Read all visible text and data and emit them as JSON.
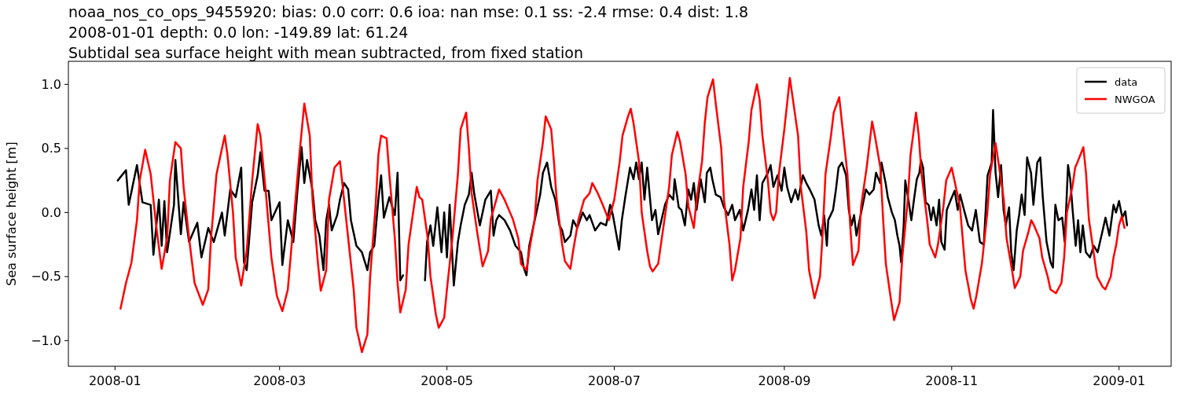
{
  "chart_data": {
    "type": "line",
    "title": "noaa_nos_co_ops_9455920: bias: 0.0  corr: 0.6  ioa: nan  mse: 0.1  ss: -2.4  rmse: 0.4  dist: 1.8",
    "subtitle": "2008-01-01 depth: 0.0 lon: -149.89 lat: 61.24\nSubtidal sea surface height with mean subtracted, from fixed station",
    "ylabel": "Sea surface height [m]",
    "xlim": [
      "2007-12-15",
      "2009-01-20"
    ],
    "ylim": [
      -1.2,
      1.18
    ],
    "xticks": [
      {
        "value": "2008-01-01",
        "label": "2008-01"
      },
      {
        "value": "2008-03-01",
        "label": "2008-03"
      },
      {
        "value": "2008-05-01",
        "label": "2008-05"
      },
      {
        "value": "2008-07-01",
        "label": "2008-07"
      },
      {
        "value": "2008-09-01",
        "label": "2008-09"
      },
      {
        "value": "2008-11-01",
        "label": "2008-11"
      },
      {
        "value": "2009-01-01",
        "label": "2009-01"
      }
    ],
    "yticks": [
      {
        "value": -1,
        "label": "−1.0"
      },
      {
        "value": -0.5,
        "label": "−0.5"
      },
      {
        "value": 0,
        "label": "0.0"
      },
      {
        "value": 0.5,
        "label": "0.5"
      },
      {
        "value": 1,
        "label": "1.0"
      }
    ],
    "grid": false,
    "legend": "top right",
    "marker": "none",
    "line_style": "solid",
    "series": [
      {
        "name": "data",
        "color": "#000000",
        "x": [
          "2008-01-02",
          "2008-01-05",
          "2008-01-06",
          "2008-01-09",
          "2008-01-11",
          "2008-01-14",
          "2008-01-15",
          "2008-01-17",
          "2008-01-18",
          "2008-01-19",
          "2008-01-20",
          "2008-01-22T12:00",
          "2008-01-23",
          "2008-01-25",
          "2008-01-26",
          "2008-01-28",
          "2008-01-31",
          "2008-02-01T12:00",
          "2008-02-04",
          "2008-02-06",
          "2008-02-09",
          "2008-02-10",
          "2008-02-12",
          "2008-02-14",
          "2008-02-16",
          "2008-02-17",
          "2008-02-18",
          "2008-02-20",
          "2008-02-22",
          "2008-02-23",
          "2008-02-24T12:00",
          "2008-02-26",
          "2008-02-27",
          "2008-03-01",
          "2008-03-02",
          "2008-03-04",
          "2008-03-06",
          "2008-03-07T12:00",
          "2008-03-09",
          "2008-03-10",
          "2008-03-11",
          "2008-03-13",
          "2008-03-14",
          "2008-03-15T12:00",
          "2008-03-17",
          "2008-03-18",
          "2008-03-19",
          "2008-03-20",
          "2008-03-22",
          "2008-03-23",
          "2008-03-24T12:00",
          "2008-03-26",
          "2008-03-27",
          "2008-03-29",
          "2008-03-31",
          "2008-04-02",
          "2008-04-03",
          "2008-04-04T12:00",
          "2008-04-06",
          "2008-04-07",
          "2008-04-08",
          "2008-04-10",
          "2008-04-12",
          "2008-04-13",
          "2008-04-14",
          "2008-04-15",
          "2008-04-20",
          "2008-04-23",
          "2008-04-23T18:00",
          "2008-04-25",
          "2008-04-26",
          "2008-04-27T12:00",
          "2008-04-29",
          "2008-04-30",
          "2008-05-01",
          "2008-05-02",
          "2008-05-03T12:00",
          "2008-05-05",
          "2008-05-06",
          "2008-05-07T12:00",
          "2008-05-09",
          "2008-05-10",
          "2008-05-11",
          "2008-05-12",
          "2008-05-13",
          "2008-05-15",
          "2008-05-17",
          "2008-05-18",
          "2008-05-19",
          "2008-05-20",
          "2008-05-22",
          "2008-05-24",
          "2008-05-26",
          "2008-05-28",
          "2008-05-29",
          "2008-05-30",
          "2008-05-31",
          "2008-06-02",
          "2008-06-04",
          "2008-06-05",
          "2008-06-06T12:00",
          "2008-06-08",
          "2008-06-09T12:00",
          "2008-06-11",
          "2008-06-12",
          "2008-06-13",
          "2008-06-15",
          "2008-06-16",
          "2008-06-17T12:00",
          "2008-06-19T12:00",
          "2008-06-21",
          "2008-06-22",
          "2008-06-24",
          "2008-06-26",
          "2008-06-28",
          "2008-06-29T12:00",
          "2008-06-30T12:00",
          "2008-07-02T18:00",
          "2008-07-03T18:00",
          "2008-07-05",
          "2008-07-06T18:00",
          "2008-07-08",
          "2008-07-09",
          "2008-07-10",
          "2008-07-11",
          "2008-07-12",
          "2008-07-13",
          "2008-07-14T18:00",
          "2008-07-16",
          "2008-07-17",
          "2008-07-19T12:00",
          "2008-07-21",
          "2008-07-22T12:00",
          "2008-07-23",
          "2008-07-24T12:00",
          "2008-07-25T12:00",
          "2008-07-26T18:00",
          "2008-07-28",
          "2008-07-29",
          "2008-07-30",
          "2008-07-31",
          "2008-08-01T12:00",
          "2008-08-03",
          "2008-08-03T18:00",
          "2008-08-05",
          "2008-08-05T18:00",
          "2008-08-07",
          "2008-08-08T18:00",
          "2008-08-10",
          "2008-08-11T12:00",
          "2008-08-13",
          "2008-08-14",
          "2008-08-15T18:00",
          "2008-08-17",
          "2008-08-18T18:00",
          "2008-08-20",
          "2008-08-21",
          "2008-08-22",
          "2008-08-23",
          "2008-08-24",
          "2008-08-26",
          "2008-08-27",
          "2008-08-28",
          "2008-08-29T12:00",
          "2008-08-31",
          "2008-09-01",
          "2008-09-02",
          "2008-09-03T12:00",
          "2008-09-05",
          "2008-09-06",
          "2008-09-07T18:00",
          "2008-09-09",
          "2008-09-10T12:00",
          "2008-09-12",
          "2008-09-13T12:00",
          "2008-09-14T12:00",
          "2008-09-15T12:00",
          "2008-09-16T12:00",
          "2008-09-17",
          "2008-09-18T18:00",
          "2008-09-19T18:00",
          "2008-09-20T18:00",
          "2008-09-22",
          "2008-09-23T12:00",
          "2008-09-24T12:00",
          "2008-09-25T12:00",
          "2008-09-26T10:00",
          "2008-09-27T07:00",
          "2008-09-28T10:00",
          "2008-09-29T14:00",
          "2008-09-30T17:00",
          "2008-10-02",
          "2008-10-03T14:00",
          "2008-10-04T10:00",
          "2008-10-05T22:00",
          "2008-10-06T10:00",
          "2008-10-07T22:00",
          "2008-10-08T17:00",
          "2008-10-10T05:00",
          "2008-10-11T07:00",
          "2008-10-12T05:00",
          "2008-10-13",
          "2008-10-13T14:00",
          "2008-10-14T12:00",
          "2008-10-15T02:00",
          "2008-10-16T12:00",
          "2008-10-17T07:00",
          "2008-10-18T12:00",
          "2008-10-19T07:00",
          "2008-10-20T05:00",
          "2008-10-20T19:00",
          "2008-10-21T14:00",
          "2008-10-22T12:00",
          "2008-10-23T14:00",
          "2008-10-24T12:00",
          "2008-10-25T07:00",
          "2008-10-26T12:00",
          "2008-10-27T10:00",
          "2008-10-28T05:00",
          "2008-10-29T10:00",
          "2008-10-30T05:00",
          "2008-10-31T17:00",
          "2008-11-02T02:00",
          "2008-11-03T05:00",
          "2008-11-04T02:00",
          "2008-11-05T12:00",
          "2008-11-07",
          "2008-11-08T10:00",
          "2008-11-09T19:00",
          "2008-11-11T07:00",
          "2008-11-12T17:00",
          "2008-11-14T02:00",
          "2008-11-15T14:00",
          "2008-11-16T02:00",
          "2008-11-17",
          "2008-11-17T22:00",
          "2008-11-19",
          "2008-11-19T22:00",
          "2008-11-20T17:00",
          "2008-11-21T22:00",
          "2008-11-22T17:00",
          "2008-11-23T14:00",
          "2008-11-24T17:00",
          "2008-11-25T14:00",
          "2008-11-26T12:00",
          "2008-11-27T14:00",
          "2008-11-28T12:00",
          "2008-11-29T22:00",
          "2008-11-30T19:00",
          "2008-12-02T05:00",
          "2008-12-03T07:00",
          "2008-12-04T05:00",
          "2008-12-05T14:00",
          "2008-12-07T02:00",
          "2008-12-07T22:00",
          "2008-12-08T19:00",
          "2008-12-09T22:00",
          "2008-12-11T07:00",
          "2008-12-12T05:00",
          "2008-12-13T10:00",
          "2008-12-14T05:00",
          "2008-12-15T02:00",
          "2008-12-16T05:00",
          "2008-12-17T02:00",
          "2008-12-17T22:00",
          "2008-12-18T19:00",
          "2008-12-19T22:00",
          "2008-12-21T10:00",
          "2008-12-22T19:00",
          "2008-12-24T05:00",
          "2008-12-25T17:00",
          "2008-12-27T02:00",
          "2008-12-28T12:00",
          "2008-12-30",
          "2008-12-30T22:00",
          "2009-01-01",
          "2009-01-02T05:00",
          "2009-01-03T07:00",
          "2009-01-03T22:00"
        ],
        "values": [
          0.25,
          0.33,
          0.06,
          0.37,
          0.08,
          0.06,
          -0.33,
          0.1,
          -0.26,
          0.09,
          -0.31,
          0.06,
          0.41,
          -0.17,
          0.08,
          -0.23,
          -0.08,
          -0.35,
          -0.12,
          -0.23,
          0.0,
          -0.18,
          0.18,
          0.12,
          0.35,
          -0.39,
          -0.45,
          0.08,
          0.29,
          0.47,
          0.17,
          0.17,
          -0.06,
          0.08,
          -0.41,
          -0.06,
          -0.23,
          0.17,
          0.51,
          0.23,
          0.41,
          0.17,
          -0.06,
          -0.18,
          -0.45,
          -0.06,
          0.06,
          -0.14,
          -0.02,
          0.1,
          0.23,
          0.18,
          -0.06,
          -0.26,
          -0.31,
          -0.45,
          -0.31,
          -0.26,
          0.1,
          0.29,
          -0.04,
          0.12,
          -0.02,
          0.31,
          -0.53,
          -0.49,
          null,
          -0.53,
          -0.23,
          -0.1,
          -0.26,
          0.04,
          -0.31,
          0.0,
          -0.35,
          0.06,
          -0.57,
          -0.23,
          -0.1,
          0.06,
          0.14,
          0.31,
          0.14,
          0.02,
          -0.1,
          0.1,
          0.17,
          -0.18,
          -0.06,
          -0.02,
          -0.06,
          -0.14,
          -0.26,
          -0.31,
          -0.43,
          -0.49,
          -0.26,
          -0.06,
          0.14,
          0.31,
          0.39,
          0.2,
          0.1,
          -0.1,
          -0.14,
          -0.23,
          -0.18,
          -0.06,
          -0.12,
          0.0,
          -0.06,
          -0.02,
          -0.14,
          -0.08,
          -0.1,
          0.06,
          -0.02,
          -0.29,
          -0.06,
          0.12,
          0.35,
          0.26,
          0.39,
          0.26,
          0.39,
          0.1,
          0.35,
          -0.06,
          0.02,
          -0.17,
          0.06,
          0.14,
          0.1,
          0.26,
          0.04,
          0.02,
          -0.1,
          0.18,
          0.1,
          0.23,
          0.02,
          0.26,
          0.08,
          0.31,
          0.35,
          0.26,
          0.14,
          0.12,
          0.04,
          -0.02,
          0.06,
          -0.06,
          0.02,
          -0.14,
          0.02,
          0.18,
          0.02,
          0.29,
          -0.06,
          0.23,
          0.31,
          0.37,
          0.2,
          0.29,
          0.17,
          0.35,
          0.2,
          0.08,
          0.18,
          0.1,
          0.29,
          0.23,
          0.17,
          0.1,
          -0.1,
          -0.18,
          -0.02,
          -0.26,
          -0.06,
          0.02,
          0.17,
          0.35,
          0.39,
          0.29,
          0.02,
          -0.1,
          -0.02,
          -0.18,
          -0.06,
          0.06,
          0.18,
          0.14,
          0.18,
          0.31,
          0.23,
          0.39,
          0.23,
          0.12,
          0.0,
          -0.06,
          -0.18,
          -0.26,
          -0.39,
          -0.1,
          0.25,
          0.06,
          -0.06,
          0.14,
          0.26,
          0.31,
          0.41,
          0.35,
          0.08,
          0.06,
          -0.06,
          0.04,
          -0.1,
          0.1,
          -0.23,
          -0.29,
          0.02,
          0.1,
          0.17,
          0.02,
          0.14,
          0.02,
          -0.1,
          -0.14,
          0.02,
          -0.23,
          -0.25,
          0.29,
          0.39,
          0.8,
          0.31,
          0.12,
          0.37,
          0.02,
          -0.1,
          0.04,
          -0.31,
          -0.45,
          -0.14,
          -0.02,
          0.14,
          -0.02,
          0.43,
          0.31,
          0.06,
          0.39,
          0.43,
          0.12,
          -0.23,
          -0.39,
          -0.43,
          0.06,
          -0.06,
          -0.04,
          -0.23,
          0.37,
          0.26,
          0.02,
          -0.26,
          -0.06,
          -0.31,
          -0.1,
          -0.31,
          -0.35,
          -0.26,
          -0.31,
          -0.17,
          -0.04,
          -0.18,
          0.06,
          0.0,
          0.09,
          -0.04,
          0.01,
          -0.1
        ]
      },
      {
        "name": "NWGOA",
        "color": "#ff0000",
        "x": [
          "2008-01-03",
          "2008-01-05",
          "2008-01-07",
          "2008-01-09",
          "2008-01-10",
          "2008-01-12",
          "2008-01-14",
          "2008-01-16",
          "2008-01-18",
          "2008-01-20",
          "2008-01-21",
          "2008-01-23",
          "2008-01-25",
          "2008-01-26",
          "2008-01-28",
          "2008-01-30",
          "2008-02-02",
          "2008-02-04",
          "2008-02-05",
          "2008-02-07",
          "2008-02-10",
          "2008-02-11",
          "2008-02-13",
          "2008-02-14",
          "2008-02-16",
          "2008-02-18",
          "2008-02-20",
          "2008-02-22",
          "2008-02-23",
          "2008-02-25",
          "2008-02-27",
          "2008-02-29",
          "2008-03-02",
          "2008-03-04",
          "2008-03-06",
          "2008-03-08",
          "2008-03-10",
          "2008-03-12",
          "2008-03-13",
          "2008-03-15",
          "2008-03-16",
          "2008-03-18",
          "2008-03-19",
          "2008-03-21",
          "2008-03-23",
          "2008-03-24",
          "2008-03-26",
          "2008-03-28",
          "2008-03-29",
          "2008-03-31",
          "2008-04-02",
          "2008-04-03",
          "2008-04-05",
          "2008-04-06",
          "2008-04-07",
          "2008-04-09",
          "2008-04-10",
          "2008-04-12",
          "2008-04-13",
          "2008-04-14",
          "2008-04-16",
          "2008-04-17",
          "2008-04-19",
          "2008-04-20",
          "2008-04-21",
          "2008-04-22",
          "2008-04-24",
          "2008-04-25",
          "2008-04-27",
          "2008-04-28",
          "2008-04-30",
          "2008-05-01",
          "2008-05-03",
          "2008-05-05",
          "2008-05-06",
          "2008-05-08",
          "2008-05-09",
          "2008-05-10",
          "2008-05-12",
          "2008-05-14",
          "2008-05-16",
          "2008-05-17",
          "2008-05-19",
          "2008-05-20",
          "2008-05-22",
          "2008-05-24",
          "2008-05-25",
          "2008-05-27",
          "2008-05-28",
          "2008-05-30",
          "2008-05-31",
          "2008-06-02",
          "2008-06-03",
          "2008-06-05",
          "2008-06-06",
          "2008-06-08",
          "2008-06-09",
          "2008-06-10",
          "2008-06-12",
          "2008-06-13",
          "2008-06-15",
          "2008-06-16",
          "2008-06-18",
          "2008-06-20",
          "2008-06-22",
          "2008-06-23",
          "2008-06-25",
          "2008-06-27",
          "2008-06-29",
          "2008-07-01",
          "2008-07-03",
          "2008-07-04",
          "2008-07-06",
          "2008-07-07",
          "2008-07-08",
          "2008-07-10",
          "2008-07-11",
          "2008-07-13",
          "2008-07-14",
          "2008-07-15",
          "2008-07-17",
          "2008-07-19",
          "2008-07-21",
          "2008-07-22",
          "2008-07-24",
          "2008-07-25",
          "2008-07-27",
          "2008-07-28",
          "2008-07-30",
          "2008-07-31",
          "2008-08-02",
          "2008-08-03",
          "2008-08-04",
          "2008-08-06",
          "2008-08-07",
          "2008-08-09",
          "2008-08-10",
          "2008-08-12",
          "2008-08-13",
          "2008-08-14",
          "2008-08-16",
          "2008-08-17",
          "2008-08-19",
          "2008-08-20",
          "2008-08-22",
          "2008-08-23",
          "2008-08-24",
          "2008-08-26",
          "2008-08-27",
          "2008-08-28",
          "2008-08-29",
          "2008-08-30",
          "2008-09-01",
          "2008-09-02",
          "2008-09-03",
          "2008-09-04",
          "2008-09-06",
          "2008-09-07",
          "2008-09-09",
          "2008-09-10",
          "2008-09-12",
          "2008-09-14",
          "2008-09-15",
          "2008-09-16",
          "2008-09-18",
          "2008-09-19",
          "2008-09-21",
          "2008-09-22",
          "2008-09-24",
          "2008-09-25",
          "2008-09-26",
          "2008-09-28",
          "2008-09-29",
          "2008-10-01",
          "2008-10-03",
          "2008-10-04",
          "2008-10-06",
          "2008-10-07",
          "2008-10-08",
          "2008-10-10",
          "2008-10-11",
          "2008-10-13",
          "2008-10-14",
          "2008-10-16",
          "2008-10-17",
          "2008-10-19",
          "2008-10-20",
          "2008-10-21",
          "2008-10-23",
          "2008-10-24",
          "2008-10-26",
          "2008-10-27",
          "2008-10-29",
          "2008-10-30",
          "2008-11-01",
          "2008-11-02",
          "2008-11-04",
          "2008-11-05",
          "2008-11-06",
          "2008-11-08",
          "2008-11-09",
          "2008-11-10",
          "2008-11-12",
          "2008-11-14",
          "2008-11-15",
          "2008-11-17",
          "2008-11-18",
          "2008-11-20",
          "2008-11-21",
          "2008-11-23",
          "2008-11-24",
          "2008-11-26",
          "2008-11-27",
          "2008-11-29",
          "2008-11-30",
          "2008-12-01",
          "2008-12-03",
          "2008-12-04",
          "2008-12-06",
          "2008-12-07",
          "2008-12-09",
          "2008-12-11",
          "2008-12-12",
          "2008-12-13",
          "2008-12-15",
          "2008-12-16",
          "2008-12-17",
          "2008-12-19",
          "2008-12-20",
          "2008-12-21",
          "2008-12-23",
          "2008-12-24",
          "2008-12-26",
          "2008-12-27",
          "2008-12-29",
          "2008-12-30",
          "2008-12-31",
          "2009-01-01",
          "2009-01-02",
          "2009-01-03"
        ],
        "values": [
          -0.75,
          -0.55,
          -0.39,
          -0.06,
          0.25,
          0.49,
          0.3,
          -0.1,
          -0.44,
          -0.2,
          0.25,
          0.55,
          0.5,
          0.2,
          -0.2,
          -0.55,
          -0.72,
          -0.6,
          -0.2,
          0.3,
          0.6,
          0.45,
          0.0,
          -0.35,
          -0.57,
          -0.3,
          0.25,
          0.69,
          0.6,
          0.15,
          -0.35,
          -0.65,
          -0.77,
          -0.6,
          -0.1,
          0.4,
          0.85,
          0.6,
          0.1,
          -0.4,
          -0.61,
          -0.45,
          0.1,
          0.35,
          0.4,
          0.2,
          -0.2,
          -0.6,
          -0.9,
          -1.09,
          -0.95,
          -0.5,
          0.05,
          0.45,
          0.6,
          0.58,
          0.3,
          -0.2,
          -0.55,
          -0.78,
          -0.6,
          -0.25,
          0.05,
          0.2,
          0.12,
          0.1,
          -0.2,
          -0.5,
          -0.8,
          -0.9,
          -0.82,
          -0.6,
          -0.2,
          0.3,
          0.65,
          0.78,
          0.5,
          0.15,
          -0.15,
          -0.42,
          -0.3,
          -0.05,
          0.1,
          0.18,
          0.1,
          0.0,
          -0.05,
          -0.2,
          -0.4,
          -0.45,
          -0.3,
          -0.05,
          0.25,
          0.55,
          0.75,
          0.65,
          0.4,
          0.1,
          -0.25,
          -0.38,
          -0.44,
          -0.3,
          -0.05,
          0.1,
          0.15,
          0.23,
          0.15,
          0.05,
          -0.06,
          0.1,
          0.4,
          0.6,
          0.75,
          0.81,
          0.7,
          0.4,
          0.0,
          -0.3,
          -0.42,
          -0.46,
          -0.4,
          -0.1,
          0.2,
          0.45,
          0.63,
          0.55,
          0.3,
          0.05,
          -0.12,
          0.1,
          0.4,
          0.7,
          0.9,
          1.04,
          0.85,
          0.5,
          0.1,
          -0.25,
          -0.53,
          -0.45,
          -0.2,
          0.2,
          0.55,
          0.8,
          1.0,
          0.88,
          0.6,
          0.25,
          0.0,
          -0.06,
          0.0,
          0.3,
          0.65,
          0.85,
          1.05,
          0.9,
          0.6,
          0.2,
          -0.15,
          -0.45,
          -0.67,
          -0.5,
          -0.15,
          0.3,
          0.6,
          0.78,
          0.9,
          0.7,
          0.3,
          -0.1,
          -0.41,
          -0.3,
          0.05,
          0.35,
          0.71,
          0.6,
          0.35,
          -0.05,
          -0.4,
          -0.7,
          -0.84,
          -0.7,
          -0.35,
          0.1,
          0.45,
          0.78,
          0.6,
          0.3,
          -0.05,
          -0.25,
          -0.35,
          -0.25,
          0.05,
          0.25,
          0.35,
          0.25,
          0.05,
          -0.2,
          -0.45,
          -0.68,
          -0.75,
          -0.65,
          -0.4,
          0.0,
          0.3,
          0.54,
          0.4,
          0.1,
          -0.2,
          -0.45,
          -0.59,
          -0.5,
          -0.3,
          -0.15,
          -0.06,
          -0.1,
          -0.2,
          -0.35,
          -0.5,
          -0.6,
          -0.63,
          -0.55,
          -0.35,
          0.0,
          0.2,
          0.35,
          0.4,
          0.51,
          0.3,
          -0.05,
          -0.35,
          -0.5,
          -0.58,
          -0.6,
          -0.5,
          -0.35,
          -0.25,
          -0.1,
          -0.03,
          -0.12
        ]
      }
    ]
  }
}
